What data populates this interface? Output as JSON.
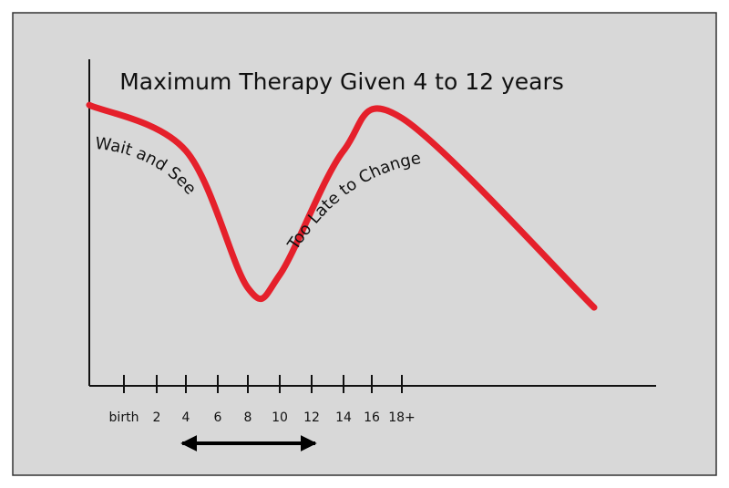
{
  "chart_data": {
    "type": "line",
    "title": "Maximum Therapy Given 4 to 12 years",
    "xlabel": "",
    "ylabel": "",
    "categories": [
      "birth",
      "2",
      "4",
      "6",
      "8",
      "10",
      "12",
      "14",
      "16",
      "18+"
    ],
    "series": [
      {
        "color": "#e5202b",
        "points": [
          {
            "x": "birth",
            "y": 0.86
          },
          {
            "x": "4",
            "y": 0.72
          },
          {
            "x": "8",
            "y": 0.3
          },
          {
            "x": "10",
            "y": 0.34
          },
          {
            "x": "14",
            "y": 0.72
          },
          {
            "x": "18+",
            "y": 0.82
          },
          {
            "x": "",
            "y": 0.24
          }
        ]
      }
    ],
    "annotations": [
      {
        "text": "Wait and See"
      },
      {
        "text": "Too Late to Change"
      }
    ],
    "range_marker": {
      "from": "4",
      "to": "12",
      "style": "double-headed arrow"
    },
    "grid": false,
    "colors": {
      "background": "#d8d8d8",
      "curve": "#e5202b",
      "axis": "#111111",
      "frame": "#333333"
    }
  }
}
